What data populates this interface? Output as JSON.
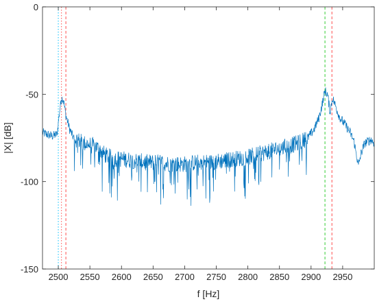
{
  "chart_data": {
    "type": "line",
    "title": "",
    "xlabel": "f [Hz]",
    "ylabel": "|X| [dB]",
    "xlim": [
      2475,
      3000
    ],
    "ylim": [
      -150,
      0
    ],
    "xticks": [
      2500,
      2550,
      2600,
      2650,
      2700,
      2750,
      2800,
      2850,
      2900,
      2950
    ],
    "yticks": [
      0,
      -50,
      -100,
      -150
    ],
    "xtick_labels": [
      "2500",
      "2550",
      "2600",
      "2650",
      "2700",
      "2750",
      "2800",
      "2850",
      "2900",
      "2950"
    ],
    "ytick_labels": [
      "0",
      "-50",
      "-100",
      "-150"
    ],
    "grid": false,
    "legend": "none",
    "series": [
      {
        "color": "#0072BD",
        "envelope": [
          [
            2475,
            -72
          ],
          [
            2490,
            -74
          ],
          [
            2498,
            -73
          ],
          [
            2502,
            -60
          ],
          [
            2505,
            -52
          ],
          [
            2508,
            -53
          ],
          [
            2512,
            -62
          ],
          [
            2518,
            -70
          ],
          [
            2524,
            -75
          ],
          [
            2530,
            -76
          ],
          [
            2540,
            -78
          ],
          [
            2550,
            -79
          ],
          [
            2560,
            -80
          ],
          [
            2575,
            -85
          ],
          [
            2590,
            -87
          ],
          [
            2600,
            -87
          ],
          [
            2620,
            -88
          ],
          [
            2640,
            -89
          ],
          [
            2660,
            -89
          ],
          [
            2680,
            -90
          ],
          [
            2700,
            -90
          ],
          [
            2720,
            -89
          ],
          [
            2740,
            -89
          ],
          [
            2760,
            -88
          ],
          [
            2780,
            -87
          ],
          [
            2800,
            -86
          ],
          [
            2820,
            -84
          ],
          [
            2840,
            -82
          ],
          [
            2860,
            -80
          ],
          [
            2880,
            -78
          ],
          [
            2895,
            -75
          ],
          [
            2905,
            -70
          ],
          [
            2913,
            -63
          ],
          [
            2918,
            -55
          ],
          [
            2922,
            -48
          ],
          [
            2926,
            -50
          ],
          [
            2930,
            -60
          ],
          [
            2934,
            -52
          ],
          [
            2938,
            -56
          ],
          [
            2945,
            -63
          ],
          [
            2955,
            -68
          ],
          [
            2962,
            -72
          ],
          [
            2968,
            -77
          ],
          [
            2972,
            -85
          ],
          [
            2975,
            -91
          ],
          [
            2979,
            -84
          ],
          [
            2985,
            -78
          ],
          [
            2995,
            -76
          ],
          [
            3000,
            -78
          ]
        ]
      }
    ],
    "vlines": [
      {
        "x": 2500,
        "color": "#00BFFF",
        "style": "dotted"
      },
      {
        "x": 2505,
        "color": "#FF4D4D",
        "style": "dotted"
      },
      {
        "x": 2512,
        "color": "#FF4D4D",
        "style": "dashed"
      },
      {
        "x": 2922,
        "color": "#33CC33",
        "style": "dashed"
      },
      {
        "x": 2933,
        "color": "#FF4D4D",
        "style": "dashed"
      }
    ]
  }
}
